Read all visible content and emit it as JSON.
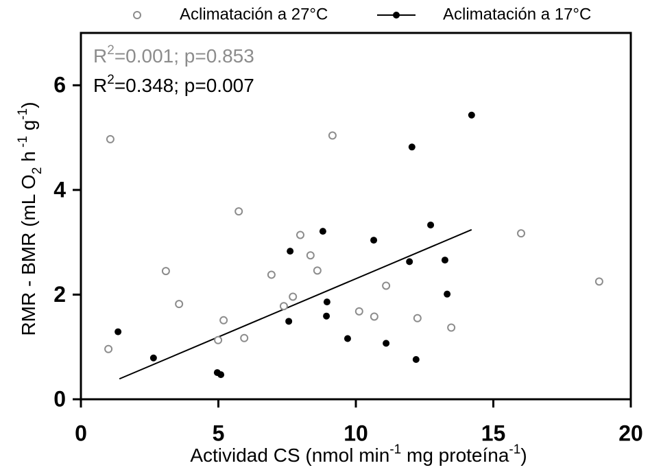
{
  "chart_data": {
    "type": "scatter",
    "x_label": [
      {
        "text": "Actividad CS (nmol min"
      },
      {
        "text": "-1",
        "script": "super"
      },
      {
        "text": " mg proteína"
      },
      {
        "text": "-1",
        "script": "super"
      },
      {
        "text": ")"
      }
    ],
    "y_label": [
      {
        "text": "RMR - BMR (mL O"
      },
      {
        "text": "2",
        "script": "sub"
      },
      {
        "text": " h"
      },
      {
        "text": " -1",
        "script": "super"
      },
      {
        "text": " g"
      },
      {
        "text": "-1",
        "script": "super"
      },
      {
        "text": ")"
      }
    ],
    "annotations": [
      {
        "color": "#8c8c8c",
        "parts": [
          {
            "text": "R"
          },
          {
            "text": "2",
            "script": "super"
          },
          {
            "text": "=0.001; p=0.853"
          }
        ]
      },
      {
        "color": "#000000",
        "parts": [
          {
            "text": "R"
          },
          {
            "text": "2",
            "script": "super"
          },
          {
            "text": "=0.348; p=0.007"
          }
        ]
      }
    ],
    "xlim": [
      0,
      20
    ],
    "xticks": [
      0,
      5,
      10,
      15,
      20
    ],
    "ylim": [
      0,
      7
    ],
    "yticks": [
      0,
      2,
      4,
      6
    ],
    "legend": "top",
    "series": [
      {
        "name": "Aclimatación a 27°C",
        "color": "#8c8c8c",
        "marker": "open",
        "x": [
          1.0,
          1.07,
          3.09,
          3.57,
          4.99,
          5.19,
          5.74,
          5.94,
          6.93,
          7.38,
          7.71,
          7.98,
          8.35,
          8.6,
          9.15,
          10.12,
          10.67,
          11.1,
          12.24,
          13.47,
          16.01,
          18.85
        ],
        "values": [
          0.96,
          4.97,
          2.45,
          1.82,
          1.13,
          1.51,
          3.59,
          1.17,
          2.38,
          1.78,
          1.96,
          3.14,
          2.75,
          2.46,
          5.04,
          1.68,
          1.58,
          2.17,
          1.55,
          1.37,
          3.17,
          2.25
        ]
      },
      {
        "name": "Aclimatación a 17°C",
        "color": "#000000",
        "marker": "filled",
        "x": [
          1.35,
          2.64,
          4.96,
          5.09,
          7.61,
          7.56,
          8.8,
          8.95,
          8.93,
          9.7,
          10.65,
          11.1,
          11.95,
          12.04,
          12.19,
          12.72,
          13.24,
          13.32,
          14.21
        ],
        "values": [
          1.29,
          0.79,
          0.51,
          0.47,
          2.83,
          1.49,
          3.21,
          1.86,
          1.59,
          1.16,
          3.04,
          1.07,
          2.63,
          4.82,
          0.76,
          3.33,
          2.66,
          2.01,
          5.43
        ],
        "fit_x": [
          1.4,
          14.21
        ],
        "fit_values": [
          0.39,
          3.24
        ]
      }
    ]
  }
}
